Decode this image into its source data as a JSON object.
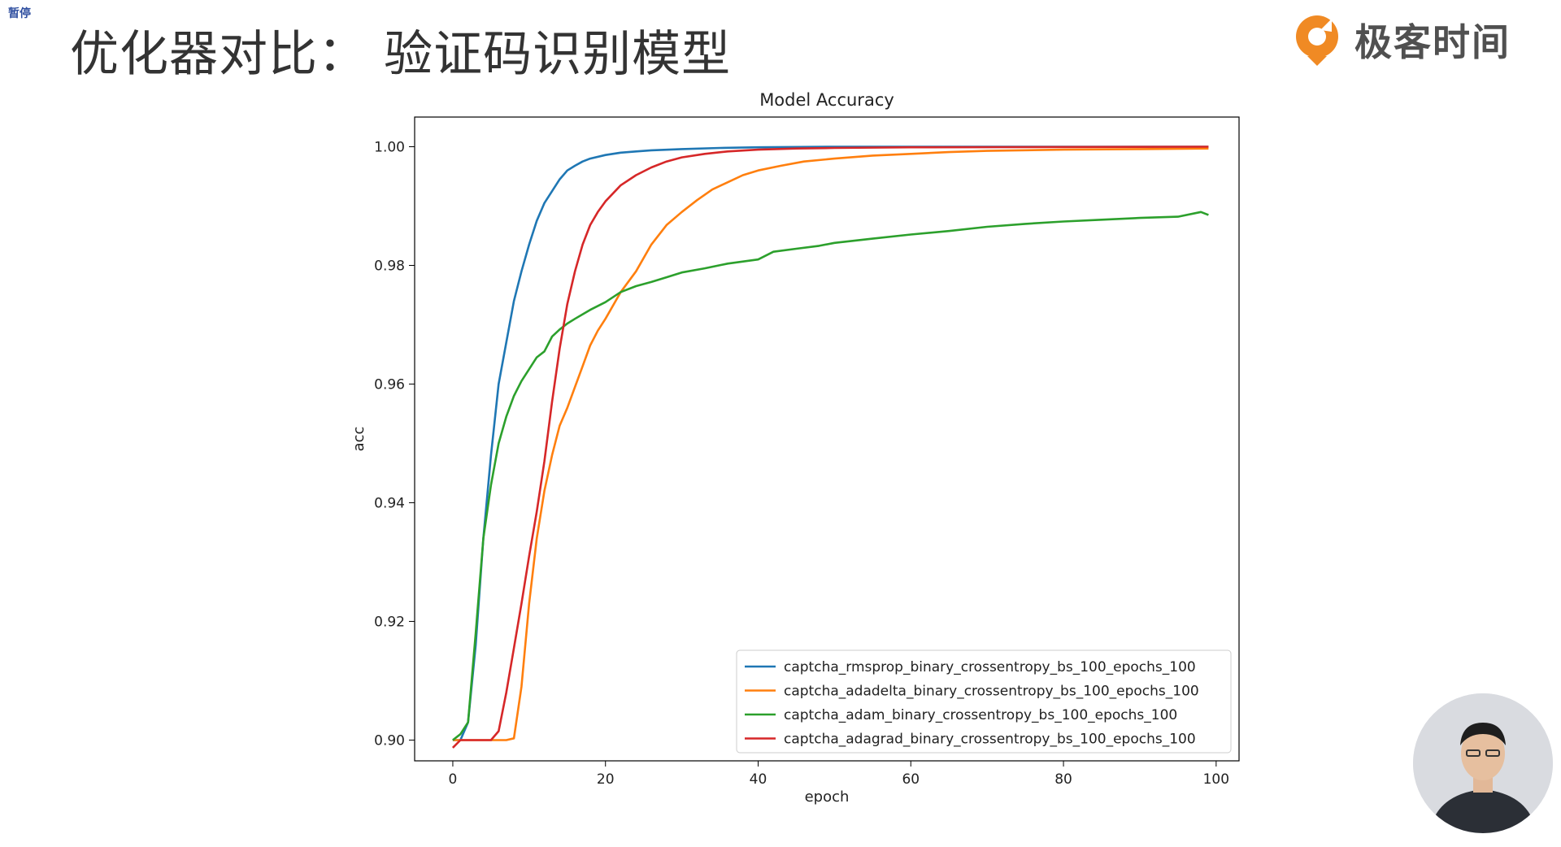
{
  "overlay": {
    "paused_label": "暂停"
  },
  "slide": {
    "title": "优化器对比： 验证码识别模型"
  },
  "brand": {
    "name": "极客时间",
    "icon": "geektime-logo-icon",
    "accent": "#f08a24"
  },
  "colors": {
    "title": "#333333",
    "blue": "#1f77b4",
    "orange": "#ff7f0e",
    "green": "#2ca02c",
    "red": "#d62728"
  },
  "webcam": {
    "icon": "presenter-avatar"
  },
  "chart_data": {
    "type": "line",
    "title": "Model Accuracy",
    "xlabel": "epoch",
    "ylabel": "acc",
    "xlim": [
      -5,
      103
    ],
    "ylim": [
      0.8965,
      1.005
    ],
    "xticks": [
      0,
      20,
      40,
      60,
      80,
      100
    ],
    "yticks": [
      0.9,
      0.92,
      0.94,
      0.96,
      0.98,
      1.0
    ],
    "xtick_labels": [
      "0",
      "20",
      "40",
      "60",
      "80",
      "100"
    ],
    "ytick_labels": [
      "0.90",
      "0.92",
      "0.94",
      "0.96",
      "0.98",
      "1.00"
    ],
    "grid": false,
    "legend_position": "lower-right",
    "series": [
      {
        "name": "captcha_rmsprop_binary_crossentropy_bs_100_epochs_100",
        "color": "#1f77b4",
        "points": [
          [
            0,
            0.9
          ],
          [
            1,
            0.9
          ],
          [
            2,
            0.903
          ],
          [
            3,
            0.916
          ],
          [
            4,
            0.934
          ],
          [
            5,
            0.948
          ],
          [
            6,
            0.96
          ],
          [
            7,
            0.967
          ],
          [
            8,
            0.974
          ],
          [
            9,
            0.979
          ],
          [
            10,
            0.9835
          ],
          [
            11,
            0.9875
          ],
          [
            12,
            0.9905
          ],
          [
            13,
            0.9925
          ],
          [
            14,
            0.9945
          ],
          [
            15,
            0.996
          ],
          [
            16,
            0.9968
          ],
          [
            17,
            0.9975
          ],
          [
            18,
            0.998
          ],
          [
            20,
            0.9986
          ],
          [
            22,
            0.999
          ],
          [
            24,
            0.9992
          ],
          [
            26,
            0.9994
          ],
          [
            30,
            0.9996
          ],
          [
            35,
            0.9998
          ],
          [
            40,
            0.9999
          ],
          [
            50,
            1.0
          ],
          [
            99,
            1.0
          ]
        ]
      },
      {
        "name": "captcha_adadelta_binary_crossentropy_bs_100_epochs_100",
        "color": "#ff7f0e",
        "points": [
          [
            0,
            0.9
          ],
          [
            5,
            0.9
          ],
          [
            7,
            0.9
          ],
          [
            8,
            0.9003
          ],
          [
            9,
            0.909
          ],
          [
            10,
            0.923
          ],
          [
            11,
            0.934
          ],
          [
            12,
            0.942
          ],
          [
            13,
            0.948
          ],
          [
            14,
            0.953
          ],
          [
            15,
            0.956
          ],
          [
            16,
            0.9595
          ],
          [
            17,
            0.963
          ],
          [
            18,
            0.9665
          ],
          [
            19,
            0.969
          ],
          [
            20,
            0.971
          ],
          [
            22,
            0.9755
          ],
          [
            24,
            0.979
          ],
          [
            26,
            0.9835
          ],
          [
            28,
            0.9868
          ],
          [
            30,
            0.989
          ],
          [
            32,
            0.991
          ],
          [
            34,
            0.9928
          ],
          [
            36,
            0.994
          ],
          [
            38,
            0.9952
          ],
          [
            40,
            0.996
          ],
          [
            43,
            0.9968
          ],
          [
            46,
            0.9975
          ],
          [
            50,
            0.998
          ],
          [
            55,
            0.9985
          ],
          [
            60,
            0.9988
          ],
          [
            65,
            0.9991
          ],
          [
            70,
            0.9993
          ],
          [
            80,
            0.9995
          ],
          [
            90,
            0.9996
          ],
          [
            99,
            0.9997
          ]
        ]
      },
      {
        "name": "captcha_adam_binary_crossentropy_bs_100_epochs_100",
        "color": "#2ca02c",
        "points": [
          [
            0,
            0.9
          ],
          [
            1,
            0.901
          ],
          [
            2,
            0.903
          ],
          [
            3,
            0.918
          ],
          [
            4,
            0.934
          ],
          [
            5,
            0.943
          ],
          [
            6,
            0.95
          ],
          [
            7,
            0.9545
          ],
          [
            8,
            0.958
          ],
          [
            9,
            0.9605
          ],
          [
            10,
            0.9625
          ],
          [
            11,
            0.9645
          ],
          [
            12,
            0.9655
          ],
          [
            13,
            0.968
          ],
          [
            14,
            0.9692
          ],
          [
            15,
            0.9702
          ],
          [
            16,
            0.971
          ],
          [
            18,
            0.9725
          ],
          [
            20,
            0.9738
          ],
          [
            22,
            0.9755
          ],
          [
            24,
            0.9765
          ],
          [
            26,
            0.9772
          ],
          [
            28,
            0.978
          ],
          [
            30,
            0.9788
          ],
          [
            33,
            0.9795
          ],
          [
            36,
            0.9803
          ],
          [
            40,
            0.981
          ],
          [
            42,
            0.9823
          ],
          [
            45,
            0.9828
          ],
          [
            48,
            0.9833
          ],
          [
            50,
            0.9838
          ],
          [
            55,
            0.9845
          ],
          [
            60,
            0.9852
          ],
          [
            65,
            0.9858
          ],
          [
            70,
            0.9865
          ],
          [
            75,
            0.987
          ],
          [
            80,
            0.9874
          ],
          [
            85,
            0.9877
          ],
          [
            90,
            0.988
          ],
          [
            95,
            0.9882
          ],
          [
            98,
            0.989
          ],
          [
            99,
            0.9885
          ]
        ]
      },
      {
        "name": "captcha_adagrad_binary_crossentropy_bs_100_epochs_100",
        "color": "#d62728",
        "points": [
          [
            0,
            0.8987
          ],
          [
            1,
            0.9
          ],
          [
            5,
            0.9
          ],
          [
            6,
            0.9015
          ],
          [
            7,
            0.908
          ],
          [
            8,
            0.9155
          ],
          [
            9,
            0.923
          ],
          [
            10,
            0.931
          ],
          [
            11,
            0.9385
          ],
          [
            12,
            0.947
          ],
          [
            13,
            0.957
          ],
          [
            14,
            0.966
          ],
          [
            15,
            0.9735
          ],
          [
            16,
            0.979
          ],
          [
            17,
            0.9835
          ],
          [
            18,
            0.9868
          ],
          [
            19,
            0.989
          ],
          [
            20,
            0.9908
          ],
          [
            22,
            0.9935
          ],
          [
            24,
            0.9952
          ],
          [
            26,
            0.9965
          ],
          [
            28,
            0.9975
          ],
          [
            30,
            0.9982
          ],
          [
            33,
            0.9988
          ],
          [
            36,
            0.9992
          ],
          [
            40,
            0.9995
          ],
          [
            45,
            0.9997
          ],
          [
            50,
            0.9998
          ],
          [
            60,
            0.9999
          ],
          [
            99,
            1.0
          ]
        ]
      }
    ]
  }
}
